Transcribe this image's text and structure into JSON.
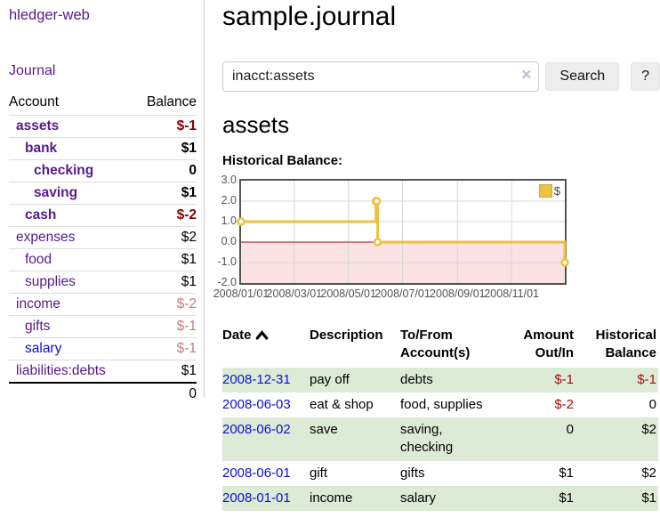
{
  "app": {
    "brand": "hledger-web"
  },
  "sidebar": {
    "journal_link": "Journal",
    "account_header": "Account",
    "balance_header": "Balance",
    "accounts": [
      {
        "name": "assets",
        "balance": "$-1"
      },
      {
        "name": "bank",
        "balance": "$1"
      },
      {
        "name": "checking",
        "balance": "0"
      },
      {
        "name": "saving",
        "balance": "$1"
      },
      {
        "name": "cash",
        "balance": "$-2"
      },
      {
        "name": "expenses",
        "balance": "$2"
      },
      {
        "name": "food",
        "balance": "$1"
      },
      {
        "name": "supplies",
        "balance": "$1"
      },
      {
        "name": "income",
        "balance": "$-2"
      },
      {
        "name": "gifts",
        "balance": "$-1"
      },
      {
        "name": "salary",
        "balance": "$-1"
      },
      {
        "name": "liabilities:debts",
        "balance": "$1"
      }
    ],
    "total": "0"
  },
  "header": {
    "title": "sample.journal"
  },
  "search": {
    "value": "inacct:assets",
    "clear_icon": "×",
    "button": "Search",
    "help_button": "?"
  },
  "account_page": {
    "title": "assets",
    "chart_label": "Historical Balance:"
  },
  "chart_data": {
    "type": "line",
    "title": "Historical Balance",
    "step": true,
    "series": [
      {
        "name": "$",
        "color": "#edc240",
        "points": [
          [
            "2008-01-01",
            1
          ],
          [
            "2008-06-01",
            2
          ],
          [
            "2008-06-02",
            2
          ],
          [
            "2008-06-03",
            0
          ],
          [
            "2008-12-31",
            -1
          ]
        ]
      }
    ],
    "x_range": [
      "2008-01-01",
      "2008-12-31"
    ],
    "x_ticks": [
      "2008/01/01",
      "2008/03/01",
      "2008/05/01",
      "2008/07/01",
      "2008/09/01",
      "2008/11/01"
    ],
    "y_ticks": [
      3.0,
      2.0,
      1.0,
      0.0,
      -1.0,
      -2.0
    ],
    "ylim": [
      -2,
      3
    ],
    "grid": true,
    "legend_position": "top-right",
    "negative_fill": "#fbe2e2",
    "zero_line_color": "#991111",
    "grid_color": "#d8d8d8"
  },
  "register": {
    "headers": {
      "date": "Date",
      "description": "Description",
      "accounts": "To/From Account(s)",
      "amount": "Amount Out/In",
      "balance": "Historical Balance"
    },
    "rows": [
      {
        "date": "2008-12-31",
        "description": "pay off",
        "accounts": "debts",
        "amount": "$-1",
        "balance": "$-1"
      },
      {
        "date": "2008-06-03",
        "description": "eat & shop",
        "accounts": "food, supplies",
        "amount": "$-2",
        "balance": "0"
      },
      {
        "date": "2008-06-02",
        "description": "save",
        "accounts": "saving, checking",
        "amount": "0",
        "balance": "$2"
      },
      {
        "date": "2008-06-01",
        "description": "gift",
        "accounts": "gifts",
        "amount": "$1",
        "balance": "$2"
      },
      {
        "date": "2008-01-01",
        "description": "income",
        "accounts": "salary",
        "amount": "$1",
        "balance": "$1"
      }
    ]
  },
  "colors": {
    "link_purple": "#551a8b",
    "link_blue": "#0f0fd0",
    "negative_strong": "#8b0000",
    "negative_faded": "#bf7f7f",
    "negative_table": "#a01010",
    "row_green": "#dcebd5",
    "series_yellow": "#edc240",
    "below_zero_pink": "#fbe2e2",
    "zero_line": "#991111"
  }
}
